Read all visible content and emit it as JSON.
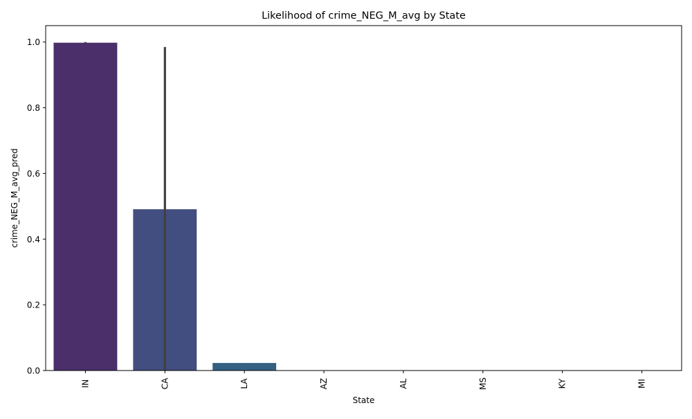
{
  "chart_data": {
    "type": "bar",
    "title": "Likelihood of crime_NEG_M_avg by State",
    "xlabel": "State",
    "ylabel": "crime_NEG_M_avg_pred",
    "categories": [
      "IN",
      "CA",
      "LA",
      "AZ",
      "AL",
      "MS",
      "KY",
      "MI"
    ],
    "values": [
      0.998,
      0.491,
      0.023,
      0.0,
      0.0,
      0.0,
      0.0,
      0.0
    ],
    "error_bars": [
      [
        0.996,
        1.0
      ],
      [
        0.0,
        0.985
      ],
      null,
      null,
      null,
      null,
      null,
      null
    ],
    "colors": [
      "#4a2f6b",
      "#424e7f",
      "#346182",
      "#2e6f8e",
      "#25868e",
      "#1f9a8a",
      "#35b779",
      "#6ece58"
    ],
    "error_bar_color": "#404040",
    "ylim": [
      0,
      1.05
    ],
    "yticks": [
      0.0,
      0.2,
      0.4,
      0.6,
      0.8,
      1.0
    ],
    "ytick_labels": [
      "0.0",
      "0.2",
      "0.4",
      "0.6",
      "0.8",
      "1.0"
    ],
    "grid": false,
    "legend": "none"
  }
}
